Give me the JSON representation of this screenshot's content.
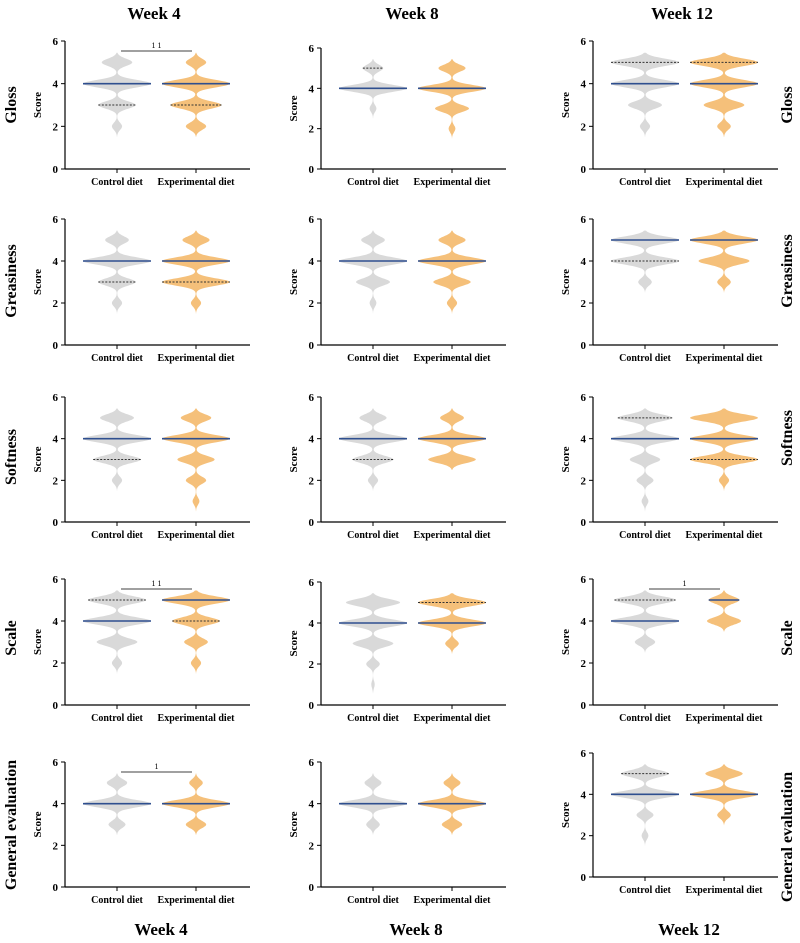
{
  "figure": {
    "week_labels_top": [
      "Week 4",
      "Week 8",
      "Week 12"
    ],
    "week_labels_bottom": [
      "Week 4",
      "Week 8",
      "Week 12"
    ],
    "row_labels": [
      "Gloss",
      "Greasiness",
      "Softness",
      "Scale",
      "General evaluation"
    ],
    "colors": {
      "control": "#d9d9d9",
      "experimental": "#f5c07a",
      "median": "#2f4f8f",
      "quartile": "#333333"
    }
  },
  "chart_data": [
    {
      "type": "violin",
      "row": "Gloss",
      "week": "Week 4",
      "title": "",
      "xlabel": "",
      "ylabel": "Score",
      "ylim": [
        0,
        6
      ],
      "yticks": [
        "0",
        "2",
        "4",
        "6"
      ],
      "categories": [
        "Control diet",
        "Experimental diet"
      ],
      "series": [
        {
          "name": "Control diet",
          "score_frequency": {
            "2": 0.15,
            "3": 0.55,
            "4": 1.0,
            "5": 0.45
          },
          "median": 4,
          "quartiles": [
            3,
            4
          ]
        },
        {
          "name": "Experimental diet",
          "score_frequency": {
            "2": 0.3,
            "3": 0.75,
            "4": 1.0,
            "5": 0.3
          },
          "median": 4,
          "quartiles": [
            3,
            4
          ]
        }
      ],
      "significance": {
        "label": "1 1",
        "between": [
          "Control diet",
          "Experimental diet"
        ]
      }
    },
    {
      "type": "violin",
      "row": "Gloss",
      "week": "Week 8",
      "title": "",
      "xlabel": "",
      "ylabel": "Score",
      "ylim": [
        0,
        6
      ],
      "yticks": [
        "0",
        "2",
        "4",
        "6"
      ],
      "categories": [
        "Control diet",
        "Experimental diet"
      ],
      "series": [
        {
          "name": "Control diet",
          "score_frequency": {
            "3": 0.1,
            "4": 1.0,
            "5": 0.3
          },
          "median": 4,
          "quartiles": [
            4,
            5
          ]
        },
        {
          "name": "Experimental diet",
          "score_frequency": {
            "2": 0.1,
            "3": 0.5,
            "4": 1.0,
            "5": 0.4
          },
          "median": 4,
          "quartiles": [
            4,
            4
          ]
        }
      ]
    },
    {
      "type": "violin",
      "row": "Gloss",
      "week": "Week 12",
      "title": "",
      "xlabel": "",
      "ylabel": "Score",
      "ylim": [
        0,
        6
      ],
      "yticks": [
        "0",
        "2",
        "4",
        "6"
      ],
      "categories": [
        "Control diet",
        "Experimental diet"
      ],
      "series": [
        {
          "name": "Control diet",
          "score_frequency": {
            "2": 0.15,
            "3": 0.5,
            "4": 1.0,
            "5": 1.0
          },
          "median": 4,
          "quartiles": [
            4,
            5
          ]
        },
        {
          "name": "Experimental diet",
          "score_frequency": {
            "2": 0.2,
            "3": 0.6,
            "4": 1.0,
            "5": 1.0
          },
          "median": 4,
          "quartiles": [
            4,
            5
          ]
        }
      ]
    },
    {
      "type": "violin",
      "row": "Greasiness",
      "week": "Week 4",
      "title": "",
      "xlabel": "",
      "ylabel": "Score",
      "ylim": [
        0,
        6
      ],
      "yticks": [
        "0",
        "2",
        "4",
        "6"
      ],
      "categories": [
        "Control diet",
        "Experimental diet"
      ],
      "series": [
        {
          "name": "Control diet",
          "score_frequency": {
            "2": 0.15,
            "3": 0.55,
            "4": 1.0,
            "5": 0.35
          },
          "median": 4,
          "quartiles": [
            3,
            4
          ]
        },
        {
          "name": "Experimental diet",
          "score_frequency": {
            "2": 0.15,
            "3": 1.0,
            "4": 1.0,
            "5": 0.4
          },
          "median": 4,
          "quartiles": [
            3,
            4
          ]
        }
      ]
    },
    {
      "type": "violin",
      "row": "Greasiness",
      "week": "Week 8",
      "title": "",
      "xlabel": "",
      "ylabel": "Score",
      "ylim": [
        0,
        6
      ],
      "yticks": [
        "0",
        "2",
        "4",
        "6"
      ],
      "categories": [
        "Control diet",
        "Experimental diet"
      ],
      "series": [
        {
          "name": "Control diet",
          "score_frequency": {
            "2": 0.1,
            "3": 0.5,
            "4": 1.0,
            "5": 0.35
          },
          "median": 4,
          "quartiles": [
            4,
            4
          ]
        },
        {
          "name": "Experimental diet",
          "score_frequency": {
            "2": 0.15,
            "3": 0.55,
            "4": 1.0,
            "5": 0.4
          },
          "median": 4,
          "quartiles": [
            4,
            4
          ]
        }
      ]
    },
    {
      "type": "violin",
      "row": "Greasiness",
      "week": "Week 12",
      "title": "",
      "xlabel": "",
      "ylabel": "Score",
      "ylim": [
        0,
        6
      ],
      "yticks": [
        "0",
        "2",
        "4",
        "6"
      ],
      "categories": [
        "Control diet",
        "Experimental diet"
      ],
      "series": [
        {
          "name": "Control diet",
          "score_frequency": {
            "3": 0.2,
            "4": 1.0,
            "5": 1.0
          },
          "median": 5,
          "quartiles": [
            4,
            5
          ]
        },
        {
          "name": "Experimental diet",
          "score_frequency": {
            "3": 0.2,
            "4": 0.75,
            "5": 1.0
          },
          "median": 5,
          "quartiles": [
            5,
            5
          ]
        }
      ]
    },
    {
      "type": "violin",
      "row": "Softness",
      "week": "Week 4",
      "title": "",
      "xlabel": "",
      "ylabel": "Score",
      "ylim": [
        0,
        6
      ],
      "yticks": [
        "0",
        "2",
        "4",
        "6"
      ],
      "categories": [
        "Control diet",
        "Experimental diet"
      ],
      "series": [
        {
          "name": "Control diet",
          "score_frequency": {
            "2": 0.15,
            "3": 0.7,
            "4": 1.0,
            "5": 0.5
          },
          "median": 4,
          "quartiles": [
            3,
            4
          ]
        },
        {
          "name": "Experimental diet",
          "score_frequency": {
            "1": 0.1,
            "2": 0.3,
            "3": 0.55,
            "4": 1.0,
            "5": 0.45
          },
          "median": 4,
          "quartiles": [
            4,
            4
          ]
        }
      ]
    },
    {
      "type": "violin",
      "row": "Softness",
      "week": "Week 8",
      "title": "",
      "xlabel": "",
      "ylabel": "Score",
      "ylim": [
        0,
        6
      ],
      "yticks": [
        "0",
        "2",
        "4",
        "6"
      ],
      "categories": [
        "Control diet",
        "Experimental diet"
      ],
      "series": [
        {
          "name": "Control diet",
          "score_frequency": {
            "2": 0.15,
            "3": 0.6,
            "4": 1.0,
            "5": 0.4
          },
          "median": 4,
          "quartiles": [
            3,
            4
          ]
        },
        {
          "name": "Experimental diet",
          "score_frequency": {
            "3": 0.7,
            "4": 1.0,
            "5": 0.35
          },
          "median": 4,
          "quartiles": [
            4,
            4
          ]
        }
      ]
    },
    {
      "type": "violin",
      "row": "Softness",
      "week": "Week 12",
      "title": "",
      "xlabel": "",
      "ylabel": "Score",
      "ylim": [
        0,
        6
      ],
      "yticks": [
        "0",
        "2",
        "4",
        "6"
      ],
      "categories": [
        "Control diet",
        "Experimental diet"
      ],
      "series": [
        {
          "name": "Control diet",
          "score_frequency": {
            "1": 0.1,
            "2": 0.25,
            "3": 0.45,
            "4": 1.0,
            "5": 0.8
          },
          "median": 4,
          "quartiles": [
            4,
            5
          ]
        },
        {
          "name": "Experimental diet",
          "score_frequency": {
            "2": 0.15,
            "3": 1.0,
            "4": 1.0,
            "5": 1.0
          },
          "median": 4,
          "quartiles": [
            3,
            4
          ]
        }
      ]
    },
    {
      "type": "violin",
      "row": "Scale",
      "week": "Week 4",
      "title": "",
      "xlabel": "",
      "ylabel": "Score",
      "ylim": [
        0,
        6
      ],
      "yticks": [
        "0",
        "2",
        "4",
        "6"
      ],
      "categories": [
        "Control diet",
        "Experimental diet"
      ],
      "series": [
        {
          "name": "Control diet",
          "score_frequency": {
            "2": 0.15,
            "3": 0.6,
            "4": 1.0,
            "5": 0.85
          },
          "median": 4,
          "quartiles": [
            4,
            5
          ]
        },
        {
          "name": "Experimental diet",
          "score_frequency": {
            "2": 0.15,
            "3": 0.35,
            "4": 0.7,
            "5": 1.0
          },
          "median": 5,
          "quartiles": [
            4,
            5
          ]
        }
      ],
      "significance": {
        "label": "1 1",
        "between": [
          "Control diet",
          "Experimental diet"
        ]
      }
    },
    {
      "type": "violin",
      "row": "Scale",
      "week": "Week 8",
      "title": "",
      "xlabel": "",
      "ylabel": "Score",
      "ylim": [
        0,
        6
      ],
      "yticks": [
        "0",
        "2",
        "4",
        "6"
      ],
      "categories": [
        "Control diet",
        "Experimental diet"
      ],
      "series": [
        {
          "name": "Control diet",
          "score_frequency": {
            "1": 0.05,
            "2": 0.2,
            "3": 0.6,
            "4": 1.0,
            "5": 0.8
          },
          "median": 4,
          "quartiles": [
            4,
            4
          ]
        },
        {
          "name": "Experimental diet",
          "score_frequency": {
            "3": 0.2,
            "4": 1.0,
            "5": 1.0
          },
          "median": 4,
          "quartiles": [
            4,
            5
          ]
        }
      ]
    },
    {
      "type": "violin",
      "row": "Scale",
      "week": "Week 12",
      "title": "",
      "xlabel": "",
      "ylabel": "Score",
      "ylim": [
        0,
        6
      ],
      "yticks": [
        "0",
        "2",
        "4",
        "6"
      ],
      "categories": [
        "Control diet",
        "Experimental diet"
      ],
      "series": [
        {
          "name": "Control diet",
          "score_frequency": {
            "3": 0.3,
            "4": 1.0,
            "5": 0.9
          },
          "median": 4,
          "quartiles": [
            4,
            5
          ]
        },
        {
          "name": "Experimental diet",
          "score_frequency": {
            "4": 0.5,
            "5": 0.45
          },
          "median": 5,
          "quartiles": [
            5,
            5
          ]
        }
      ],
      "significance": {
        "label": "1",
        "between": [
          "Control diet",
          "Experimental diet"
        ]
      }
    },
    {
      "type": "violin",
      "row": "General evaluation",
      "week": "Week 4",
      "title": "",
      "xlabel": "",
      "ylabel": "Score",
      "ylim": [
        0,
        6
      ],
      "yticks": [
        "0",
        "2",
        "4",
        "6"
      ],
      "categories": [
        "Control diet",
        "Experimental diet"
      ],
      "series": [
        {
          "name": "Control diet",
          "score_frequency": {
            "3": 0.25,
            "4": 1.0,
            "5": 0.3
          },
          "median": 4,
          "quartiles": [
            4,
            4
          ]
        },
        {
          "name": "Experimental diet",
          "score_frequency": {
            "3": 0.3,
            "4": 1.0,
            "5": 0.2
          },
          "median": 4,
          "quartiles": [
            4,
            4
          ]
        }
      ],
      "significance": {
        "label": "1",
        "between": [
          "Control diet",
          "Experimental diet"
        ]
      }
    },
    {
      "type": "violin",
      "row": "General evaluation",
      "week": "Week 8",
      "title": "",
      "xlabel": "",
      "ylabel": "Score",
      "ylim": [
        0,
        6
      ],
      "yticks": [
        "0",
        "2",
        "4",
        "6"
      ],
      "categories": [
        "Control diet",
        "Experimental diet"
      ],
      "series": [
        {
          "name": "Control diet",
          "score_frequency": {
            "3": 0.2,
            "4": 1.0,
            "5": 0.25
          },
          "median": 4,
          "quartiles": [
            4,
            4
          ]
        },
        {
          "name": "Experimental diet",
          "score_frequency": {
            "3": 0.3,
            "4": 1.0,
            "5": 0.25
          },
          "median": 4,
          "quartiles": [
            4,
            4
          ]
        }
      ]
    },
    {
      "type": "violin",
      "row": "General evaluation",
      "week": "Week 12",
      "title": "",
      "xlabel": "",
      "ylabel": "Score",
      "ylim": [
        0,
        6
      ],
      "yticks": [
        "0",
        "2",
        "4",
        "6"
      ],
      "categories": [
        "Control diet",
        "Experimental diet"
      ],
      "series": [
        {
          "name": "Control diet",
          "score_frequency": {
            "2": 0.1,
            "3": 0.25,
            "4": 1.0,
            "5": 0.7
          },
          "median": 4,
          "quartiles": [
            4,
            5
          ]
        },
        {
          "name": "Experimental diet",
          "score_frequency": {
            "3": 0.2,
            "4": 1.0,
            "5": 0.55
          },
          "median": 4,
          "quartiles": [
            4,
            4
          ]
        }
      ]
    }
  ]
}
